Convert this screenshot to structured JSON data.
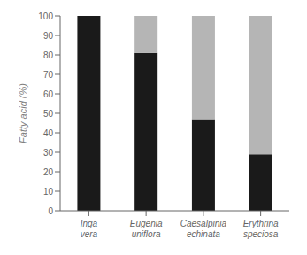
{
  "chart_data": {
    "type": "bar",
    "stacked": true,
    "categories": [
      "Inga\nvera",
      "Eugenia\nuniflora",
      "Caesalpinia\nechinata",
      "Erythrina\nspeciosa"
    ],
    "series": [
      {
        "color": "#1a1a1a",
        "values": [
          100,
          81,
          47,
          29
        ]
      },
      {
        "color": "#b5b5b5",
        "values": [
          0,
          19,
          53,
          71
        ]
      }
    ],
    "ylabel": "Fatty acid (%)",
    "ylim": [
      0,
      100
    ],
    "yticks": [
      0,
      10,
      20,
      30,
      40,
      50,
      60,
      70,
      80,
      90,
      100
    ],
    "grid": false
  }
}
